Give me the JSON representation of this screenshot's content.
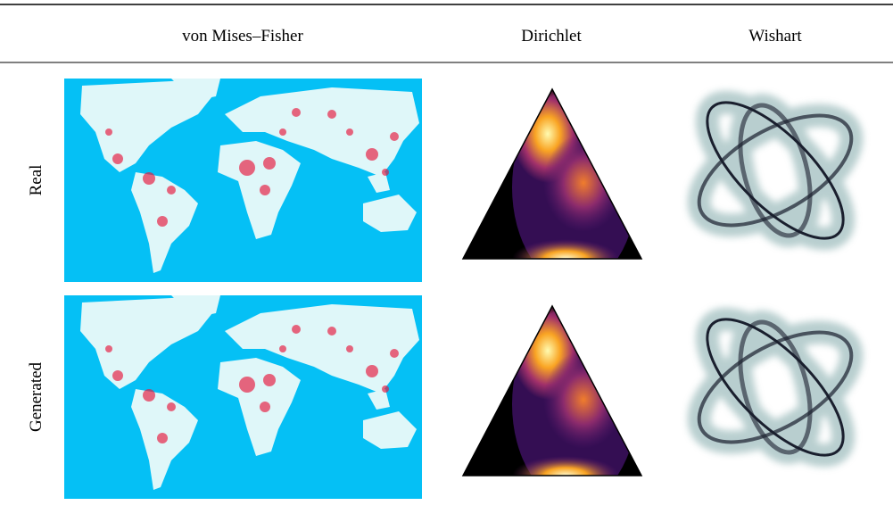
{
  "header": {
    "columns": [
      "von Mises–Fisher",
      "Dirichlet",
      "Wishart"
    ]
  },
  "rows": [
    {
      "label": "Real"
    },
    {
      "label": "Generated"
    }
  ]
}
